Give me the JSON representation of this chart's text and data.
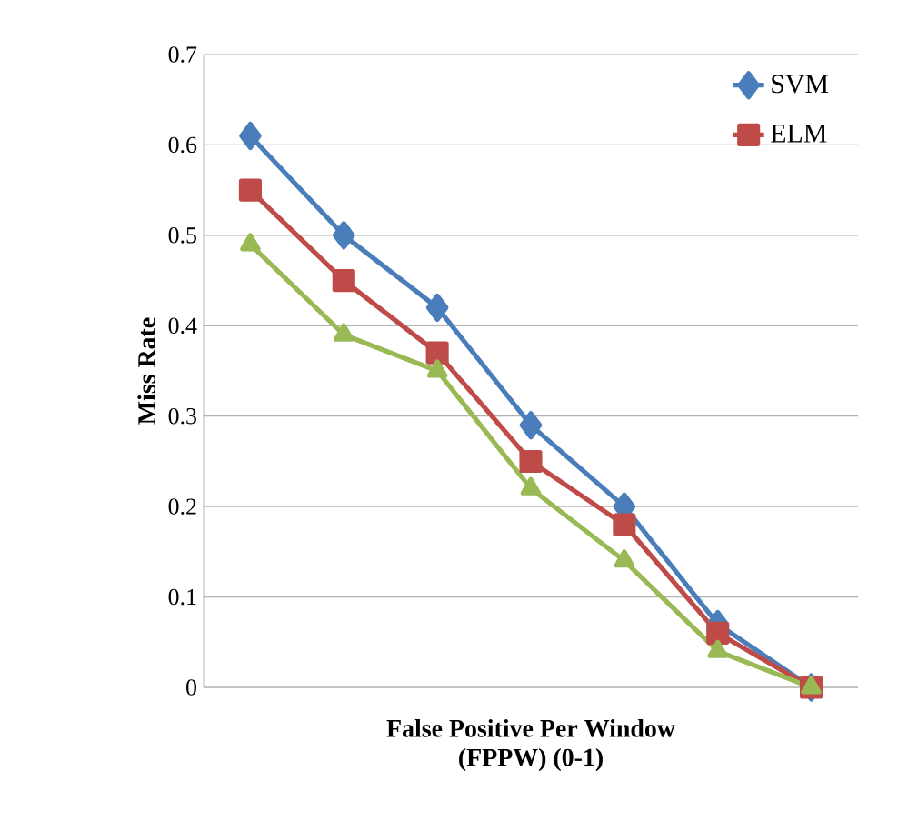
{
  "chart_data": {
    "type": "line",
    "xlabel": "False Positive Per Window (FPPW) (0-1)",
    "ylabel": "Miss Rate",
    "categories": [
      null,
      null,
      null,
      null,
      null,
      null,
      null
    ],
    "series": [
      {
        "name": "SVM",
        "color": "#4a7ebb",
        "marker": "diamond",
        "values": [
          0.61,
          0.5,
          0.42,
          0.29,
          0.2,
          0.07,
          0
        ]
      },
      {
        "name": "ELM",
        "color": "#be4b48",
        "marker": "square",
        "values": [
          0.55,
          0.45,
          0.37,
          0.25,
          0.18,
          0.06,
          0
        ]
      },
      {
        "color": "#98b954",
        "marker": "triangle",
        "values": [
          0.49,
          0.39,
          0.35,
          0.22,
          0.14,
          0.04,
          0
        ]
      }
    ],
    "ylim": [
      0,
      0.7
    ],
    "yticks": [
      0,
      0.1,
      0.2,
      0.3,
      0.4,
      0.5,
      0.6,
      0.7
    ],
    "grid": "y",
    "legend": "top right",
    "tick_labels": "y"
  }
}
